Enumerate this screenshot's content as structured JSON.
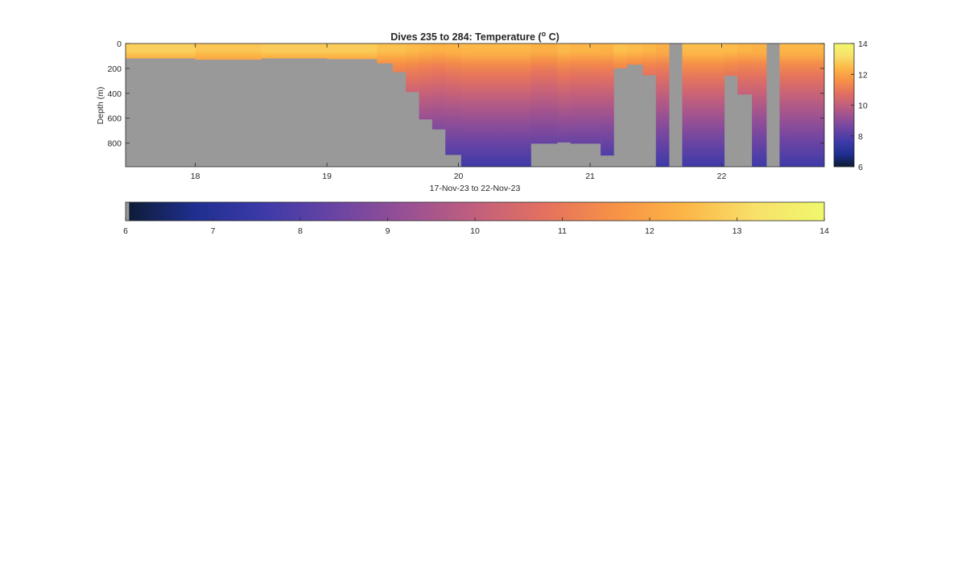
{
  "chart_data": {
    "type": "heatmap",
    "title_prefix": "Dives 235 to 284: Temperature (",
    "title_superscript": "o",
    "title_suffix": " C)",
    "xlabel": "17-Nov-23 to 22-Nov-23",
    "ylabel": "Depth (m)",
    "xlim": [
      17.47,
      22.78
    ],
    "ylim": [
      0,
      990
    ],
    "x_ticks": [
      18,
      19,
      20,
      21,
      22
    ],
    "y_ticks": [
      0,
      200,
      400,
      600,
      800
    ],
    "color_range": [
      6,
      14
    ],
    "colorbar_ticks": [
      6,
      8,
      10,
      12,
      14
    ],
    "wide_colorbar_ticks": [
      6,
      7,
      8,
      9,
      10,
      11,
      12,
      13,
      14
    ],
    "colormap_stops": [
      "#0d1b33",
      "#1f2f8f",
      "#3d3aa8",
      "#6a44a3",
      "#975094",
      "#c15f7d",
      "#e4715f",
      "#f79146",
      "#fcb646",
      "#f8e06a",
      "#f0f86c"
    ],
    "no_data_color": "#999999",
    "columns": [
      {
        "x0": 17.47,
        "x1": 18.0,
        "bottom": 120,
        "surface_temp": 12.9
      },
      {
        "x0": 18.0,
        "x1": 18.5,
        "bottom": 130,
        "surface_temp": 12.7
      },
      {
        "x0": 18.5,
        "x1": 19.0,
        "bottom": 120,
        "surface_temp": 12.8
      },
      {
        "x0": 19.0,
        "x1": 19.38,
        "bottom": 125,
        "surface_temp": 12.8
      },
      {
        "x0": 19.38,
        "x1": 19.5,
        "bottom": 160,
        "surface_temp": 12.6
      },
      {
        "x0": 19.5,
        "x1": 19.6,
        "bottom": 230,
        "surface_temp": 12.6
      },
      {
        "x0": 19.6,
        "x1": 19.7,
        "bottom": 390,
        "surface_temp": 12.5
      },
      {
        "x0": 19.7,
        "x1": 19.8,
        "bottom": 610,
        "surface_temp": 12.4
      },
      {
        "x0": 19.8,
        "x1": 19.9,
        "bottom": 690,
        "surface_temp": 12.3
      },
      {
        "x0": 19.9,
        "x1": 20.02,
        "bottom": 895,
        "surface_temp": 12.4
      },
      {
        "x0": 20.02,
        "x1": 20.55,
        "bottom": 990,
        "surface_temp": 12.5
      },
      {
        "x0": 20.55,
        "x1": 20.75,
        "bottom": 805,
        "surface_temp": 12.3
      },
      {
        "x0": 20.75,
        "x1": 20.85,
        "bottom": 795,
        "surface_temp": 12.5
      },
      {
        "x0": 20.85,
        "x1": 21.08,
        "bottom": 805,
        "surface_temp": 12.4
      },
      {
        "x0": 21.08,
        "x1": 21.18,
        "bottom": 900,
        "surface_temp": 12.4
      },
      {
        "x0": 21.18,
        "x1": 21.28,
        "bottom": 200,
        "surface_temp": 12.6
      },
      {
        "x0": 21.28,
        "x1": 21.4,
        "bottom": 170,
        "surface_temp": 12.5
      },
      {
        "x0": 21.4,
        "x1": 21.5,
        "bottom": 255,
        "surface_temp": 12.4
      },
      {
        "x0": 21.5,
        "x1": 21.6,
        "bottom": 990,
        "surface_temp": 12.3
      },
      {
        "x0": 21.6,
        "x1": 21.7,
        "bottom": 0,
        "surface_temp": 12.3
      },
      {
        "x0": 21.7,
        "x1": 22.02,
        "bottom": 990,
        "surface_temp": 12.6
      },
      {
        "x0": 22.02,
        "x1": 22.12,
        "bottom": 260,
        "surface_temp": 12.5
      },
      {
        "x0": 22.12,
        "x1": 22.23,
        "bottom": 410,
        "surface_temp": 12.4
      },
      {
        "x0": 22.23,
        "x1": 22.34,
        "bottom": 990,
        "surface_temp": 12.4
      },
      {
        "x0": 22.34,
        "x1": 22.44,
        "bottom": 0,
        "surface_temp": 12.4
      },
      {
        "x0": 22.44,
        "x1": 22.78,
        "bottom": 990,
        "surface_temp": 12.5
      }
    ]
  }
}
